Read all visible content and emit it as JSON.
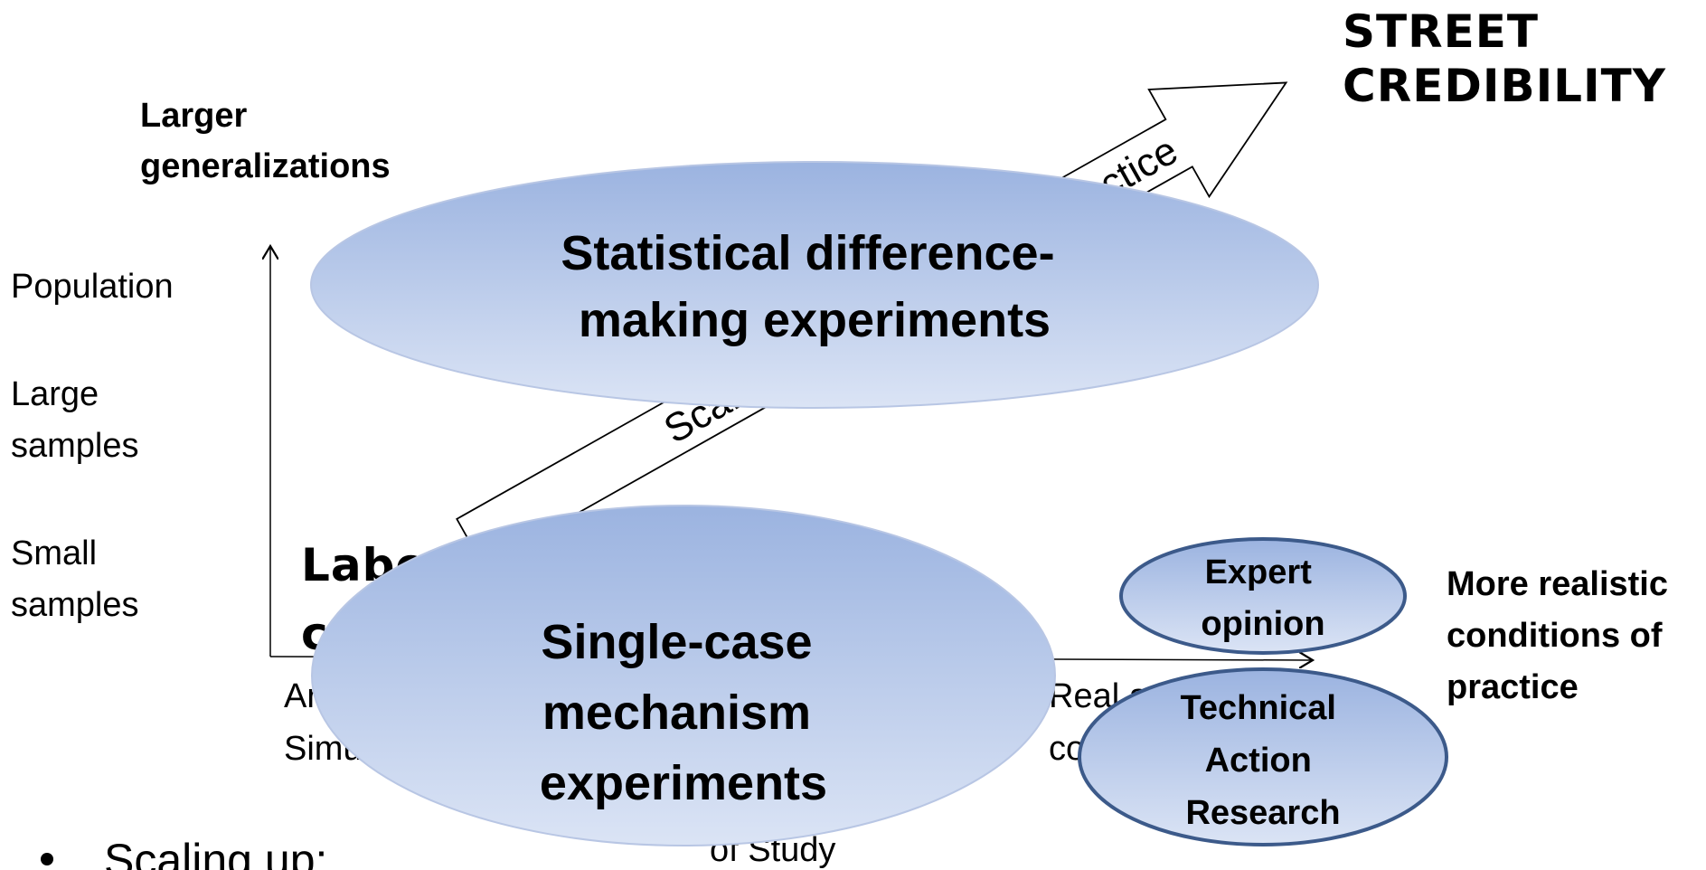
{
  "street_credibility": [
    "STREET",
    "CREDIBILITY"
  ],
  "vertical_axis": {
    "top": [
      "Larger",
      "generalizations"
    ],
    "levels": [
      [
        "Population"
      ],
      [
        "Large",
        "samples"
      ],
      [
        "Small",
        "samples"
      ]
    ]
  },
  "horizontal_axis": {
    "left": [
      "Artificial",
      "Simulated"
    ],
    "right": [
      "Real and actual",
      "conditions"
    ],
    "title": "of Study",
    "end": [
      "More realistic",
      "conditions of",
      "practice"
    ]
  },
  "laboratory": [
    "Laboratory",
    "conditions"
  ],
  "arrows": {
    "scaling": "Scaling up",
    "practice": "to practice"
  },
  "nodes": [
    {
      "label": [
        "Statistical difference-",
        "making experiments"
      ]
    },
    {
      "label": [
        "Single-case",
        "mechanism",
        "experiments"
      ]
    },
    {
      "label": [
        "Expert",
        "opinion"
      ]
    },
    {
      "label": [
        "Technical",
        "Action",
        "Research"
      ]
    }
  ],
  "bullet": "Scaling up:"
}
